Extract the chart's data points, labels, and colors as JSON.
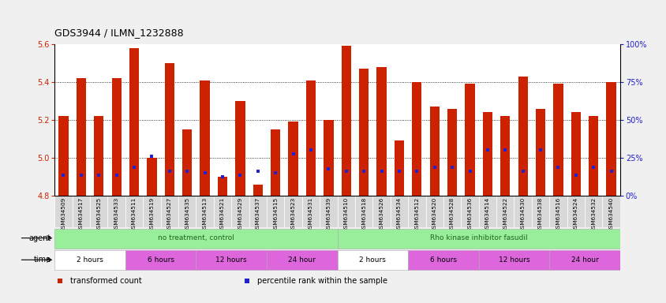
{
  "title": "GDS3944 / ILMN_1232888",
  "samples": [
    "GSM634509",
    "GSM634517",
    "GSM634525",
    "GSM634533",
    "GSM634511",
    "GSM634519",
    "GSM634527",
    "GSM634535",
    "GSM634513",
    "GSM634521",
    "GSM634529",
    "GSM634537",
    "GSM634515",
    "GSM634523",
    "GSM634531",
    "GSM634539",
    "GSM634510",
    "GSM634518",
    "GSM634526",
    "GSM634534",
    "GSM634512",
    "GSM634520",
    "GSM634528",
    "GSM634536",
    "GSM634514",
    "GSM634522",
    "GSM634530",
    "GSM634538",
    "GSM634516",
    "GSM634524",
    "GSM634532",
    "GSM634540"
  ],
  "bar_values": [
    5.22,
    5.42,
    5.22,
    5.42,
    5.58,
    5.0,
    5.5,
    5.15,
    5.41,
    4.9,
    5.3,
    4.86,
    5.15,
    5.19,
    5.41,
    5.2,
    5.59,
    5.47,
    5.48,
    5.09,
    5.4,
    5.27,
    5.26,
    5.39,
    5.24,
    5.22,
    5.43,
    5.26,
    5.39,
    5.24,
    5.22,
    5.4
  ],
  "percentile_values": [
    4.91,
    4.91,
    4.91,
    4.91,
    4.95,
    5.01,
    4.93,
    4.93,
    4.92,
    4.9,
    4.91,
    4.93,
    4.92,
    5.02,
    5.04,
    4.94,
    4.93,
    4.93,
    4.93,
    4.93,
    4.93,
    4.95,
    4.95,
    4.93,
    5.04,
    5.04,
    4.93,
    5.04,
    4.95,
    4.91,
    4.95,
    4.93
  ],
  "ylim_left": [
    4.8,
    5.6
  ],
  "yticks_left": [
    4.8,
    5.0,
    5.2,
    5.4,
    5.6
  ],
  "yticks_right": [
    0,
    25,
    50,
    75,
    100
  ],
  "bar_color": "#cc2200",
  "percentile_color": "#2222cc",
  "bg_color": "#f0f0f0",
  "plot_bg": "#ffffff",
  "tick_label_bg": "#d8d8d8",
  "left_tick_color": "#cc2200",
  "right_tick_color": "#2222cc",
  "agent_groups": [
    {
      "label": "no treatment, control",
      "start": 0,
      "end": 16,
      "color": "#99ee99"
    },
    {
      "label": "Rho kinase inhibitor fasudil",
      "start": 16,
      "end": 32,
      "color": "#99ee99"
    }
  ],
  "time_groups": [
    {
      "label": "2 hours",
      "start": 0,
      "end": 4,
      "color": "#ffffff"
    },
    {
      "label": "6 hours",
      "start": 4,
      "end": 8,
      "color": "#dd66dd"
    },
    {
      "label": "12 hours",
      "start": 8,
      "end": 12,
      "color": "#dd66dd"
    },
    {
      "label": "24 hour",
      "start": 12,
      "end": 16,
      "color": "#dd66dd"
    },
    {
      "label": "2 hours",
      "start": 16,
      "end": 20,
      "color": "#ffffff"
    },
    {
      "label": "6 hours",
      "start": 20,
      "end": 24,
      "color": "#dd66dd"
    },
    {
      "label": "12 hours",
      "start": 24,
      "end": 28,
      "color": "#dd66dd"
    },
    {
      "label": "24 hour",
      "start": 28,
      "end": 32,
      "color": "#dd66dd"
    }
  ],
  "legend_items": [
    {
      "label": "transformed count",
      "color": "#cc2200"
    },
    {
      "label": "percentile rank within the sample",
      "color": "#2222cc"
    }
  ]
}
